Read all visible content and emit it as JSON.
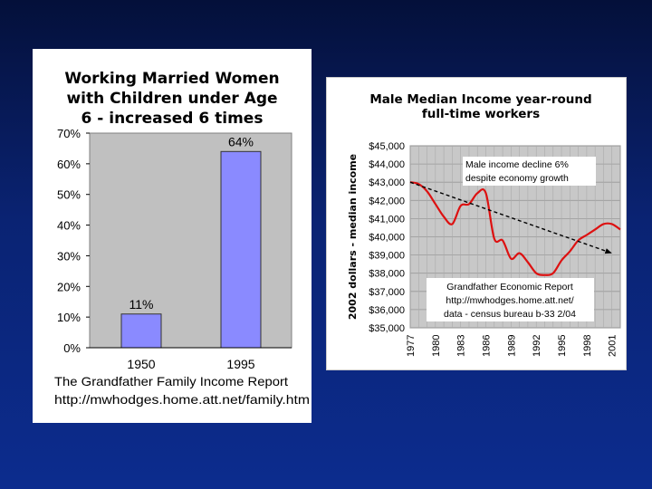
{
  "colors": {
    "bar": "#8a8aff",
    "plot_bg_left": "#c0c0c0",
    "plot_bg_right": "#c8c8c8",
    "line": "#dd1111",
    "trend": "#000000"
  },
  "left": {
    "title_lines": [
      "Working Married Women",
      "with Children under Age",
      "6 - increased 6 times"
    ],
    "footer_lines": [
      "The Grandfather Family Income Report",
      "http://mwhodges.home.att.net/family.htm"
    ]
  },
  "right": {
    "title_lines": [
      "Male Median Income year-round",
      "full-time workers"
    ],
    "annotation_top": [
      "Male income decline 6%",
      "despite economy growth"
    ],
    "annotation_bottom": [
      "Grandfather Economic Report",
      "http://mwhodges.home.att.net/",
      "data - census bureau b-33 2/04"
    ]
  },
  "chart_data": [
    {
      "type": "bar",
      "title": "Working Married Women with Children under Age 6 - increased 6 times",
      "categories": [
        "1950",
        "1995"
      ],
      "values": [
        11,
        64
      ],
      "value_labels": [
        "11%",
        "64%"
      ],
      "ylim": [
        0,
        70
      ],
      "yticks": [
        "0%",
        "10%",
        "20%",
        "30%",
        "40%",
        "50%",
        "60%",
        "70%"
      ],
      "xlabel": "",
      "ylabel": "",
      "grid": false
    },
    {
      "type": "line",
      "title": "Male Median Income year-round full-time workers",
      "ylabel": "2002 dollars - median income",
      "xlabel": "",
      "xlim": [
        1977,
        2002
      ],
      "ylim": [
        35000,
        45000
      ],
      "xticks": [
        "1977",
        "1980",
        "1983",
        "1986",
        "1989",
        "1992",
        "1995",
        "1998",
        "2001"
      ],
      "yticks": [
        "$35,000",
        "$36,000",
        "$37,000",
        "$38,000",
        "$39,000",
        "$40,000",
        "$41,000",
        "$42,000",
        "$43,000",
        "$44,000",
        "$45,000"
      ],
      "grid": true,
      "series": [
        {
          "x": [
            1977,
            1978,
            1979,
            1980,
            1981,
            1982,
            1983,
            1984,
            1985,
            1986,
            1987,
            1988,
            1989,
            1990,
            1991,
            1992,
            1993,
            1994,
            1995,
            1996,
            1997,
            1998,
            1999,
            2000,
            2001,
            2002
          ],
          "y": [
            43000,
            42900,
            42500,
            41800,
            41100,
            40700,
            41700,
            41800,
            42400,
            42400,
            39900,
            39800,
            38800,
            39100,
            38600,
            38000,
            37900,
            38000,
            38700,
            39200,
            39800,
            40100,
            40400,
            40700,
            40700,
            40400
          ]
        },
        {
          "x": [
            1977,
            2001
          ],
          "y": [
            43000,
            39100
          ],
          "style": "dashed-arrow"
        }
      ]
    }
  ]
}
